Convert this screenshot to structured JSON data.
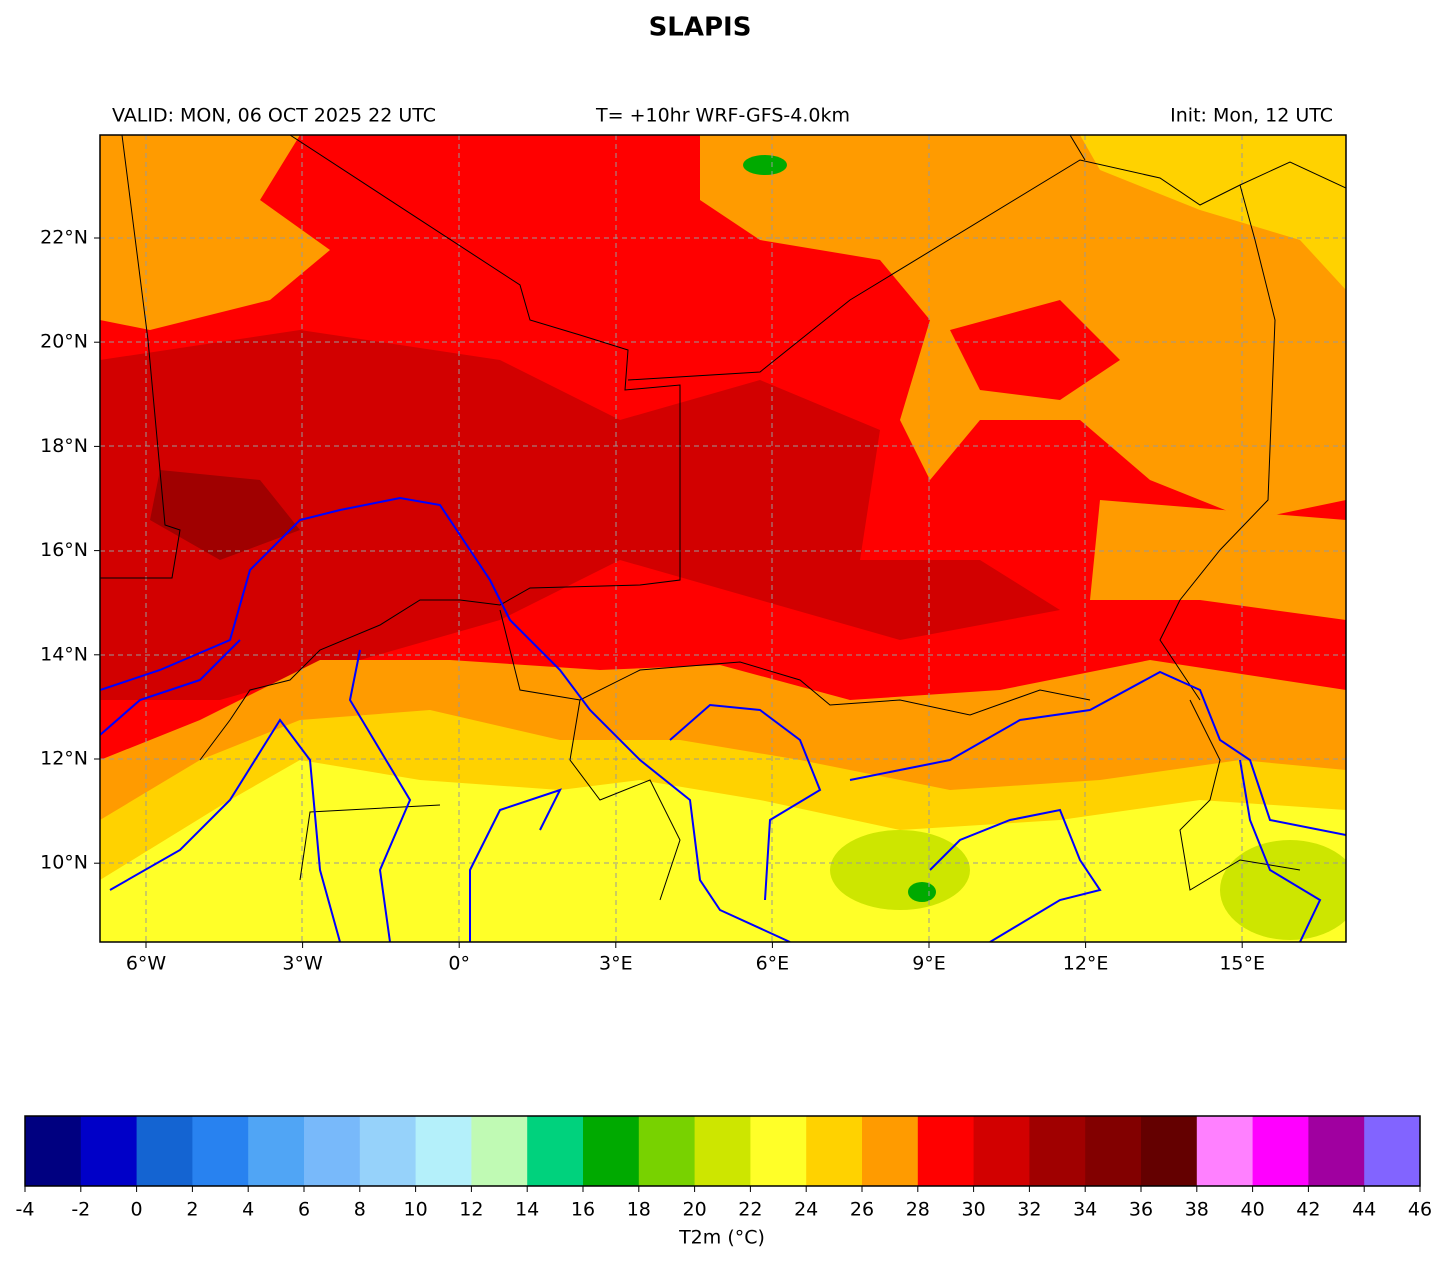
{
  "title": "SLAPIS",
  "header": {
    "valid": "VALID: MON, 06 OCT 2025 22 UTC",
    "run": "T= +10hr WRF-GFS-4.0km",
    "init": "Init: Mon, 12 UTC"
  },
  "map": {
    "lon_labels": [
      "6°W",
      "3°W",
      "0°",
      "3°E",
      "6°E",
      "9°E",
      "12°E",
      "15°E"
    ],
    "lat_labels": [
      "22°N",
      "20°N",
      "18°N",
      "16°N",
      "14°N",
      "12°N",
      "10°N"
    ]
  },
  "colorbar": {
    "label": "T2m (°C)",
    "ticks": [
      -4,
      -2,
      0,
      2,
      4,
      6,
      8,
      10,
      12,
      14,
      16,
      18,
      20,
      22,
      24,
      26,
      28,
      30,
      32,
      34,
      36,
      38,
      40,
      42,
      44,
      46
    ],
    "colors": [
      "#000080",
      "#0000c8",
      "#1464d2",
      "#2882f0",
      "#50a5f5",
      "#78b9fa",
      "#96d2fa",
      "#b4f0fa",
      "#c0fab4",
      "#00d27d",
      "#00aa00",
      "#78d200",
      "#cde600",
      "#ffff28",
      "#ffd200",
      "#ff9b00",
      "#ff0000",
      "#d20000",
      "#a00000",
      "#820000",
      "#640000",
      "#ff80ff",
      "#ff00ff",
      "#a000a0",
      "#8264ff"
    ]
  }
}
